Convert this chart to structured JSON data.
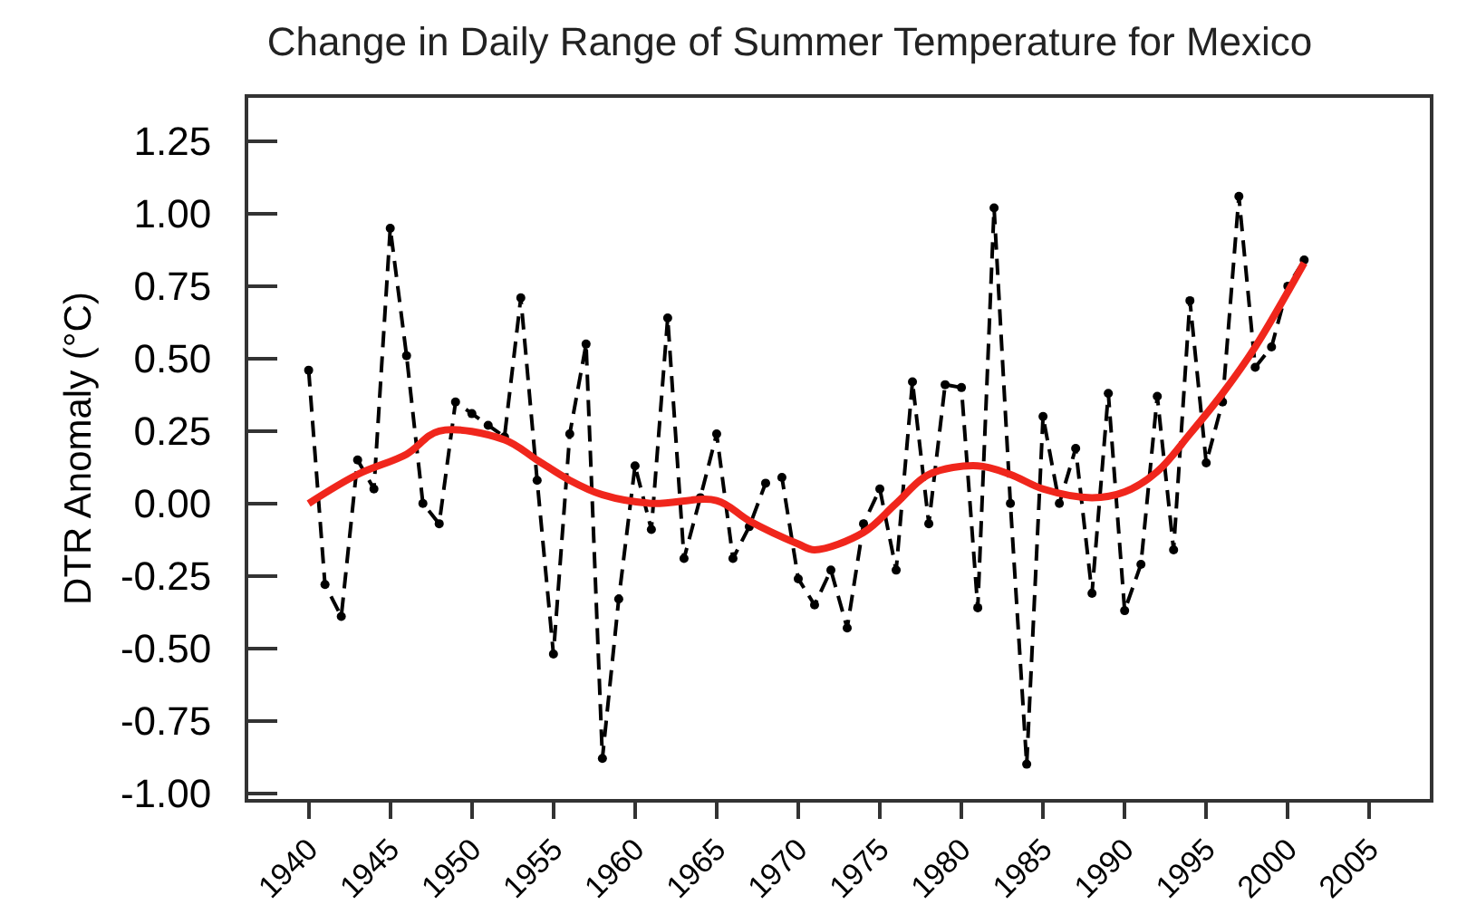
{
  "chart_data": {
    "type": "line",
    "title": "Change in Daily Range of Summer Temperature for Mexico",
    "ylabel": "DTR Anomaly (°C)",
    "xlim": [
      1936.3,
      2008.7
    ],
    "xticks": [
      1940,
      1945,
      1950,
      1955,
      1960,
      1965,
      1970,
      1975,
      1980,
      1985,
      1990,
      1995,
      2000,
      2005
    ],
    "ylim": [
      -1.02,
      1.4
    ],
    "yticks": [
      {
        "value": -1,
        "label": "-1.00"
      },
      {
        "value": -0.75,
        "label": "-0.75"
      },
      {
        "value": -0.5,
        "label": "-0.50"
      },
      {
        "value": -0.25,
        "label": "-0.25"
      },
      {
        "value": 0,
        "label": "0.00"
      },
      {
        "value": 0.25,
        "label": "0.25"
      },
      {
        "value": 0.5,
        "label": "0.50"
      },
      {
        "value": 0.75,
        "label": "0.75"
      },
      {
        "value": 1,
        "label": "1.00"
      },
      {
        "value": 1.25,
        "label": "1.25"
      }
    ],
    "grid": false,
    "series": [
      {
        "color": "#000000",
        "marker": "circle",
        "line_style": "dashed",
        "x": [
          1940,
          1941,
          1942,
          1943,
          1944,
          1945,
          1946,
          1947,
          1948,
          1949,
          1950,
          1951,
          1952,
          1953,
          1954,
          1955,
          1956,
          1957,
          1958,
          1959,
          1960,
          1961,
          1962,
          1963,
          1964,
          1965,
          1966,
          1967,
          1968,
          1969,
          1970,
          1971,
          1972,
          1973,
          1974,
          1975,
          1976,
          1977,
          1978,
          1979,
          1980,
          1981,
          1982,
          1983,
          1984,
          1985,
          1986,
          1987,
          1988,
          1989,
          1990,
          1991,
          1992,
          1993,
          1994,
          1995,
          1996,
          1997,
          1998,
          1999,
          2000,
          2001
        ],
        "values": [
          0.46,
          -0.28,
          -0.39,
          0.15,
          0.05,
          0.95,
          0.51,
          0.0,
          -0.07,
          0.35,
          0.31,
          0.27,
          0.23,
          0.71,
          0.08,
          -0.52,
          0.24,
          0.55,
          -0.88,
          -0.33,
          0.13,
          -0.09,
          0.64,
          -0.19,
          0.02,
          0.24,
          -0.19,
          -0.08,
          0.07,
          0.09,
          -0.26,
          -0.35,
          -0.23,
          -0.43,
          -0.07,
          0.05,
          -0.23,
          0.42,
          -0.07,
          0.41,
          0.4,
          -0.36,
          1.02,
          0.0,
          -0.9,
          0.3,
          0.0,
          0.19,
          -0.31,
          0.38,
          -0.37,
          -0.21,
          0.37,
          -0.16,
          0.7,
          0.14,
          0.35,
          1.06,
          0.47,
          0.54,
          0.75,
          0.84
        ]
      },
      {
        "color": "#f0261c",
        "line_style": "solid",
        "x": [
          1940,
          1943,
          1946,
          1948,
          1952,
          1954,
          1956,
          1958,
          1961,
          1965,
          1967,
          1970,
          1971,
          1974,
          1976,
          1978,
          1981,
          1983,
          1985,
          1988,
          1990,
          1992,
          1994,
          1996,
          1998,
          2001
        ],
        "values": [
          0.0,
          0.1,
          0.17,
          0.25,
          0.22,
          0.15,
          0.08,
          0.03,
          0.0,
          0.01,
          -0.06,
          -0.14,
          -0.16,
          -0.1,
          0.0,
          0.1,
          0.13,
          0.1,
          0.05,
          0.02,
          0.04,
          0.11,
          0.24,
          0.38,
          0.54,
          0.83
        ]
      }
    ]
  }
}
